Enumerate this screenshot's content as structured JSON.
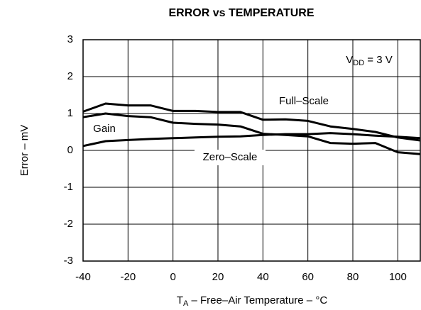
{
  "chart_data": {
    "type": "line",
    "title": "ERROR vs TEMPERATURE",
    "x_label": {
      "main": "T",
      "sub": "A",
      "rest": " – Free–Air Temperature – °C"
    },
    "y_label": "Error – mV",
    "annotation": {
      "main": "V",
      "sub": "DD",
      "rest": " = 3 V"
    },
    "x": [
      -40,
      -30,
      -20,
      -10,
      0,
      10,
      20,
      30,
      40,
      50,
      60,
      70,
      80,
      90,
      100,
      110
    ],
    "series": [
      {
        "name": "Full–Scale",
        "color": "#000000",
        "values": [
          1.05,
          1.27,
          1.22,
          1.22,
          1.07,
          1.07,
          1.04,
          1.04,
          0.83,
          0.84,
          0.8,
          0.65,
          0.58,
          0.5,
          0.35,
          0.27
        ]
      },
      {
        "name": "Gain",
        "color": "#000000",
        "values": [
          0.9,
          1.0,
          0.93,
          0.9,
          0.75,
          0.72,
          0.7,
          0.65,
          0.45,
          0.42,
          0.38,
          0.2,
          0.18,
          0.2,
          -0.05,
          -0.1
        ]
      },
      {
        "name": "Zero–Scale",
        "color": "#000000",
        "values": [
          0.12,
          0.25,
          0.28,
          0.31,
          0.33,
          0.35,
          0.37,
          0.38,
          0.42,
          0.44,
          0.44,
          0.47,
          0.44,
          0.4,
          0.37,
          0.33
        ]
      }
    ],
    "xlim": [
      -40,
      110
    ],
    "xticks": [
      -40,
      -20,
      0,
      20,
      40,
      60,
      80,
      100
    ],
    "ylim": [
      -3,
      3
    ],
    "yticks": [
      -3,
      -2,
      -1,
      0,
      1,
      2,
      3
    ],
    "grid": true
  }
}
